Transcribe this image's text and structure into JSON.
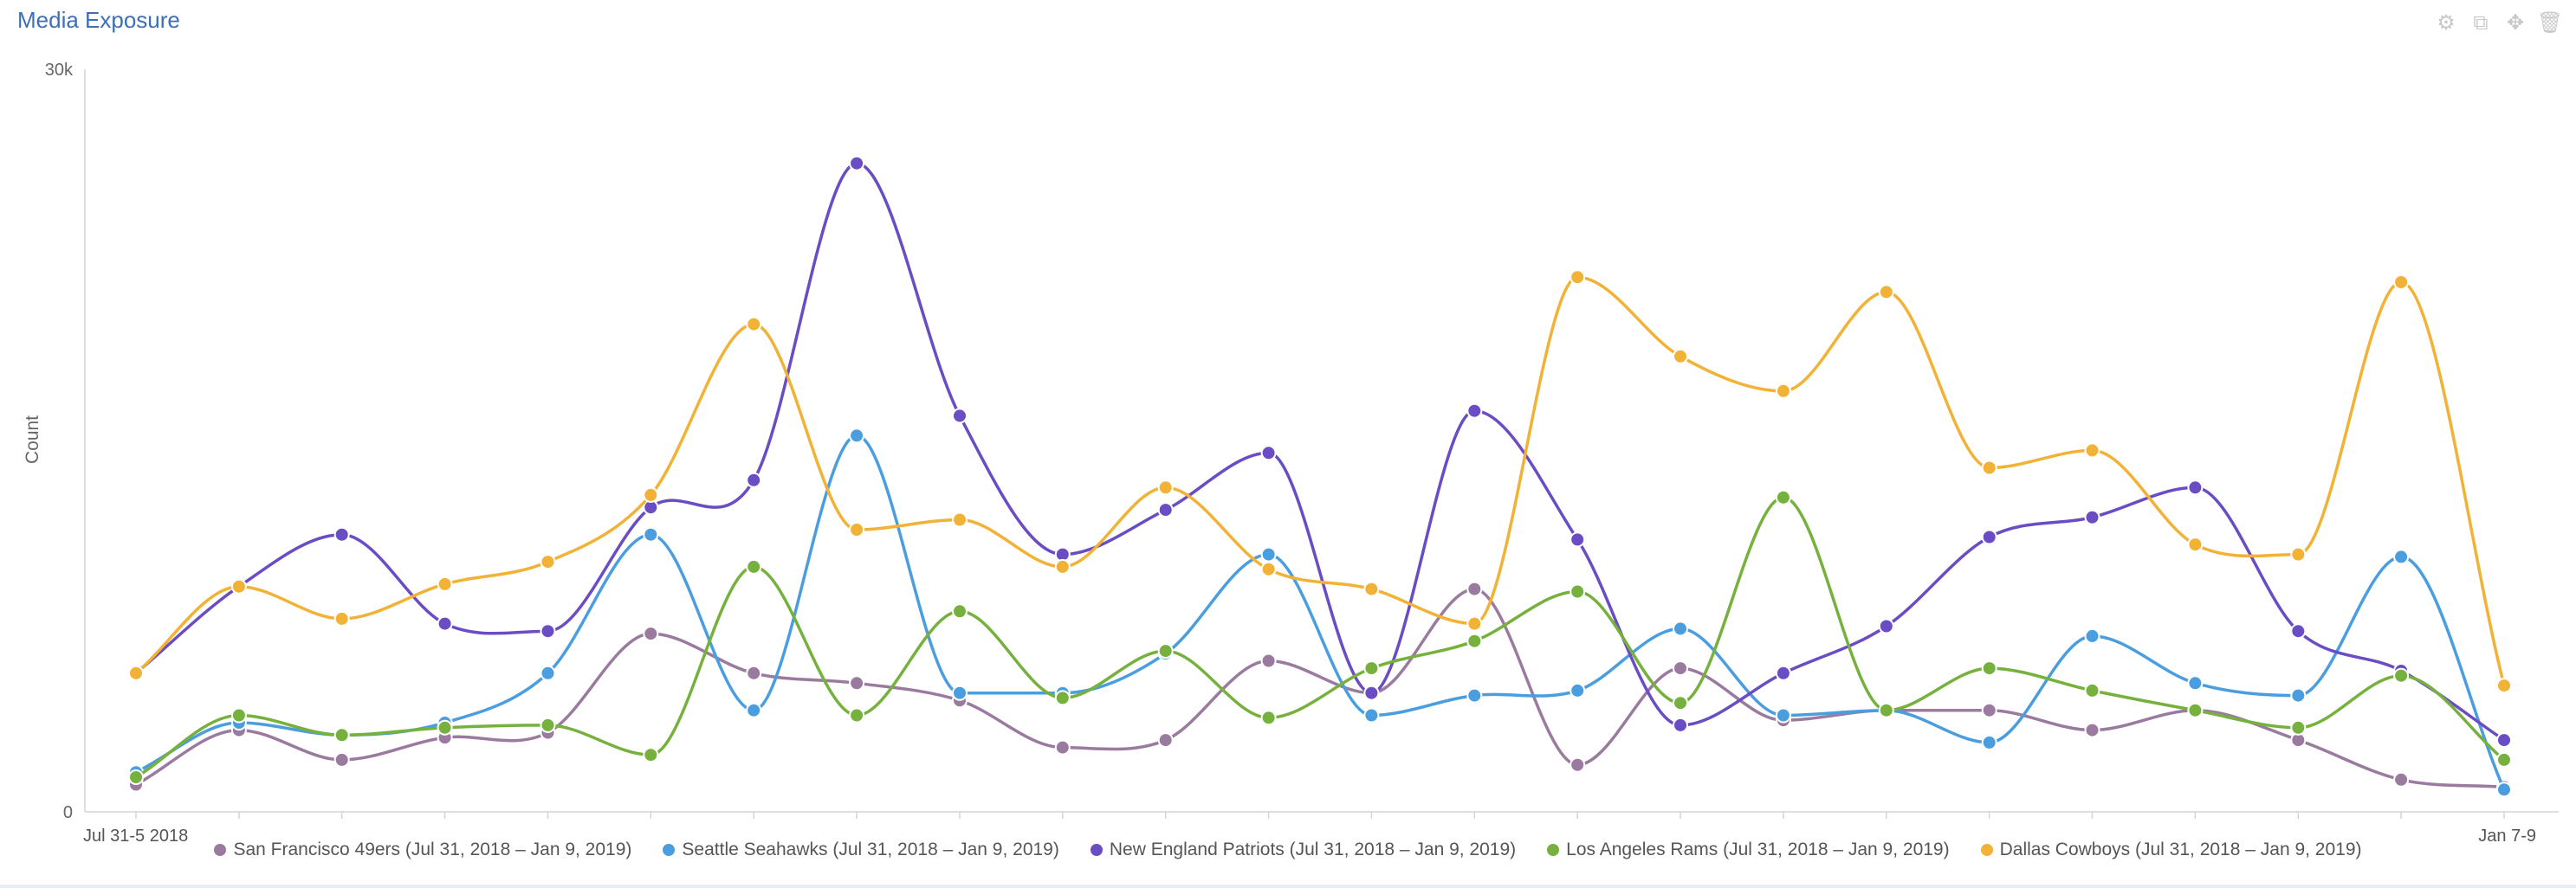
{
  "panel": {
    "title": "Media Exposure",
    "toolbar": [
      {
        "name": "settings-icon",
        "glyph": "⚙"
      },
      {
        "name": "copy-icon",
        "glyph": "⧉"
      },
      {
        "name": "move-icon",
        "glyph": "✥"
      },
      {
        "name": "trash-icon",
        "glyph": "🗑"
      }
    ]
  },
  "chart_data": {
    "type": "line",
    "ylabel": "Count",
    "ylim": [
      0,
      30000
    ],
    "y_tick_labels": [
      "0",
      "30k"
    ],
    "x_tick_labels": [
      "Jul 31-5 2018",
      "Jan 7-9"
    ],
    "x": [
      1,
      2,
      3,
      4,
      5,
      6,
      7,
      8,
      9,
      10,
      11,
      12,
      13,
      14,
      15,
      16,
      17,
      18,
      19,
      20,
      21,
      22,
      23,
      24
    ],
    "grid": false,
    "legend_position": "bottom",
    "series": [
      {
        "name": "San Francisco 49ers (Jul 31, 2018 – Jan 9, 2019)",
        "color": "#9a7a9e",
        "values": [
          1100,
          3300,
          2100,
          3000,
          3200,
          7200,
          5600,
          5200,
          4500,
          2600,
          2900,
          6100,
          4800,
          9000,
          1900,
          5800,
          3700,
          4100,
          4100,
          3300,
          4100,
          2900,
          1300,
          1000
        ]
      },
      {
        "name": "Seattle Seahawks (Jul 31, 2018 – Jan 9, 2019)",
        "color": "#4a9ee0",
        "values": [
          1600,
          3600,
          3100,
          3600,
          5600,
          11200,
          4100,
          15200,
          4800,
          4800,
          6400,
          10400,
          3900,
          4700,
          4900,
          7400,
          3900,
          4100,
          2800,
          7100,
          5200,
          4700,
          10300,
          900
        ]
      },
      {
        "name": "New England Patriots (Jul 31, 2018 – Jan 9, 2019)",
        "color": "#6a4cc4",
        "values": [
          5600,
          9100,
          11200,
          7600,
          7300,
          12300,
          13400,
          26200,
          16000,
          10400,
          12200,
          14500,
          4800,
          16200,
          11000,
          3500,
          5600,
          7500,
          11100,
          11900,
          13100,
          7300,
          5700,
          2900
        ]
      },
      {
        "name": "Los Angeles Rams (Jul 31, 2018 – Jan 9, 2019)",
        "color": "#76b13e",
        "values": [
          1400,
          3900,
          3100,
          3400,
          3500,
          2300,
          9900,
          3900,
          8100,
          4600,
          6500,
          3800,
          5800,
          6900,
          8900,
          4400,
          12700,
          4100,
          5800,
          4900,
          4100,
          3400,
          5500,
          2100
        ]
      },
      {
        "name": "Dallas Cowboys (Jul 31, 2018 – Jan 9, 2019)",
        "color": "#f2b236",
        "values": [
          5600,
          9100,
          7800,
          9200,
          10100,
          12800,
          19700,
          11400,
          11800,
          9900,
          13100,
          9800,
          9000,
          7600,
          21600,
          18400,
          17000,
          21000,
          13900,
          14600,
          10800,
          10400,
          21400,
          5100
        ]
      }
    ]
  }
}
